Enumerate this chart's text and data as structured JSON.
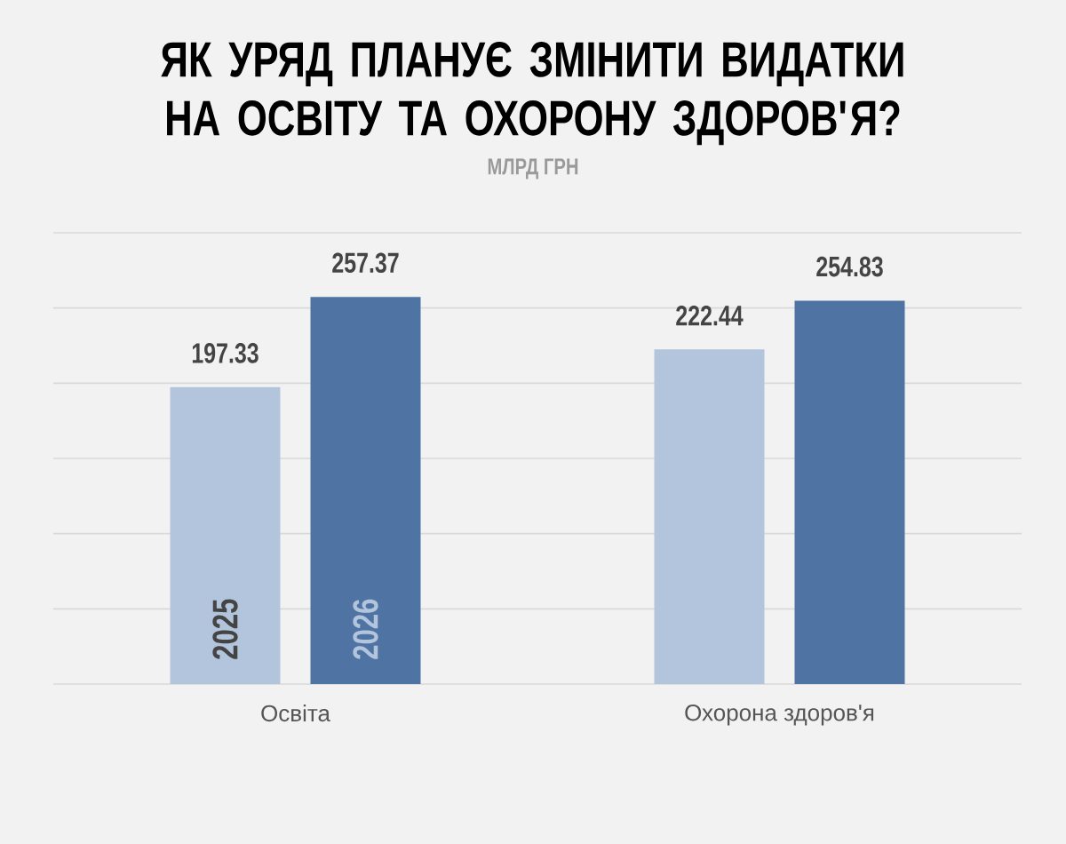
{
  "chart_data": {
    "type": "bar",
    "title": "ЯК УРЯД ПЛАНУЄ ЗМІНИТИ ВИДАТКИ НА ОСВІТУ ТА ОХОРОНУ ЗДОРОВ'Я?",
    "subtitle": "МЛРД ГРН",
    "categories": [
      "Освіта",
      "Охорона здоров'я"
    ],
    "series": [
      {
        "name": "2025",
        "color": "#b3c5dc",
        "values": [
          197.33,
          222.44
        ]
      },
      {
        "name": "2026",
        "color": "#4f74a3",
        "values": [
          257.37,
          254.83
        ]
      }
    ],
    "ylim": [
      0,
      300
    ],
    "yticks": [
      {
        "value": 0,
        "label": null
      },
      {
        "value": 50,
        "label": null
      },
      {
        "value": 100,
        "label": null
      },
      {
        "value": 150,
        "label": null
      },
      {
        "value": 200,
        "label": null
      },
      {
        "value": 250,
        "label": null
      },
      {
        "value": 300,
        "label": null
      }
    ],
    "grid": "y",
    "tick_labels": "x",
    "data_labels": true
  }
}
